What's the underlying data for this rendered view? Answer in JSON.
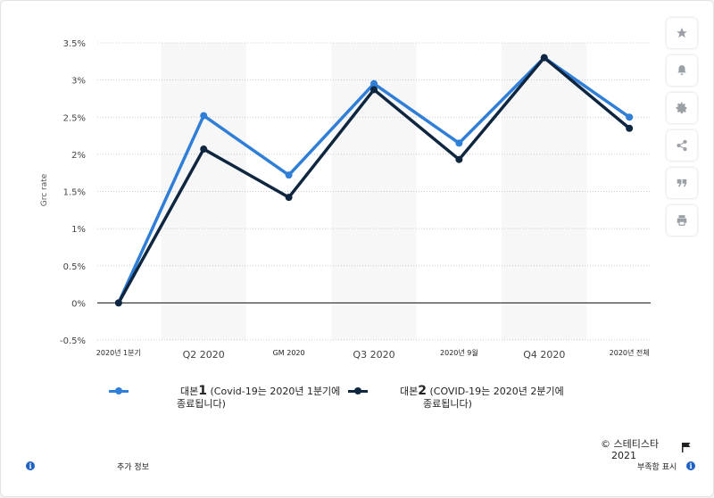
{
  "chart_data": {
    "type": "line",
    "ylabel": "Grc    rate",
    "y_ticks": [
      "3.5%",
      "3%",
      "2.5%",
      "2%",
      "1.5%",
      "1%",
      "0.5%",
      "0%",
      "-0.5%"
    ],
    "ylim": [
      -0.5,
      3.5
    ],
    "categories": [
      "2020년 1분기",
      "Q2 2020",
      "GM 2020",
      "Q3 2020",
      "2020년 9월",
      "Q4 2020",
      "2020년 전체"
    ],
    "x_tick_style": [
      "small",
      "main",
      "small",
      "main",
      "small",
      "main",
      "small"
    ],
    "series": [
      {
        "values": [
          0.0,
          2.52,
          1.72,
          2.95,
          2.15,
          3.3,
          2.5
        ],
        "color": "#2f7ed8"
      },
      {
        "values": [
          0.0,
          2.07,
          1.42,
          2.87,
          1.93,
          3.3,
          2.35
        ],
        "color": "#0f2640"
      }
    ],
    "grid": true,
    "legend_position": "bottom"
  },
  "legend": [
    {
      "prefix": "대본",
      "num": "1",
      "text": "(Covid-19는 2020년 1분기에",
      "text2": "종료됩니다)",
      "color": "#2f7ed8"
    },
    {
      "prefix": "대본",
      "num": "2",
      "text": "(COVID-19는 2020년 2분기에",
      "text2": "종료됩니다)",
      "color": "#0f2640"
    }
  ],
  "footer": {
    "copyright": "© 스테티스타",
    "year": "2021",
    "more_info": "추가 정보",
    "report": "부족함 표시"
  },
  "toolbar": [
    "star-icon",
    "bell-icon",
    "gear-icon",
    "share-icon",
    "quote-icon",
    "print-icon"
  ]
}
